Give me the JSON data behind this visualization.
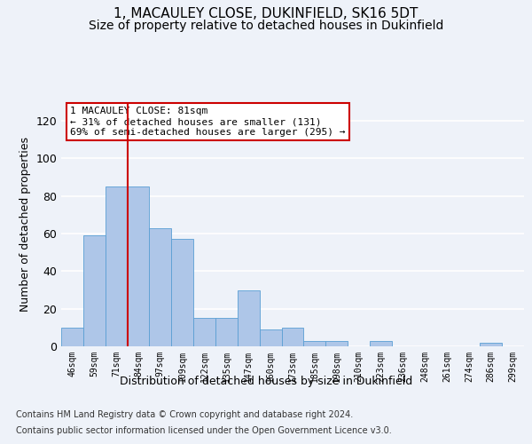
{
  "title1": "1, MACAULEY CLOSE, DUKINFIELD, SK16 5DT",
  "title2": "Size of property relative to detached houses in Dukinfield",
  "xlabel": "Distribution of detached houses by size in Dukinfield",
  "ylabel": "Number of detached properties",
  "categories": [
    "46sqm",
    "59sqm",
    "71sqm",
    "84sqm",
    "97sqm",
    "109sqm",
    "122sqm",
    "135sqm",
    "147sqm",
    "160sqm",
    "173sqm",
    "185sqm",
    "198sqm",
    "210sqm",
    "223sqm",
    "236sqm",
    "248sqm",
    "261sqm",
    "274sqm",
    "286sqm",
    "299sqm"
  ],
  "values": [
    10,
    59,
    85,
    85,
    63,
    57,
    15,
    15,
    30,
    9,
    10,
    3,
    3,
    0,
    3,
    0,
    0,
    0,
    0,
    2,
    0
  ],
  "bar_color": "#aec6e8",
  "bar_edge_color": "#5a9fd4",
  "vline_x": 2.5,
  "vline_color": "#cc0000",
  "annotation_text": "1 MACAULEY CLOSE: 81sqm\n← 31% of detached houses are smaller (131)\n69% of semi-detached houses are larger (295) →",
  "annotation_box_color": "#ffffff",
  "annotation_box_edge": "#cc0000",
  "ylim": [
    0,
    130
  ],
  "yticks": [
    0,
    20,
    40,
    60,
    80,
    100,
    120
  ],
  "footer1": "Contains HM Land Registry data © Crown copyright and database right 2024.",
  "footer2": "Contains public sector information licensed under the Open Government Licence v3.0.",
  "bg_color": "#eef2f9",
  "grid_color": "#ffffff",
  "title1_fontsize": 11,
  "title2_fontsize": 10,
  "xlabel_fontsize": 9,
  "ylabel_fontsize": 9,
  "footer_fontsize": 7
}
